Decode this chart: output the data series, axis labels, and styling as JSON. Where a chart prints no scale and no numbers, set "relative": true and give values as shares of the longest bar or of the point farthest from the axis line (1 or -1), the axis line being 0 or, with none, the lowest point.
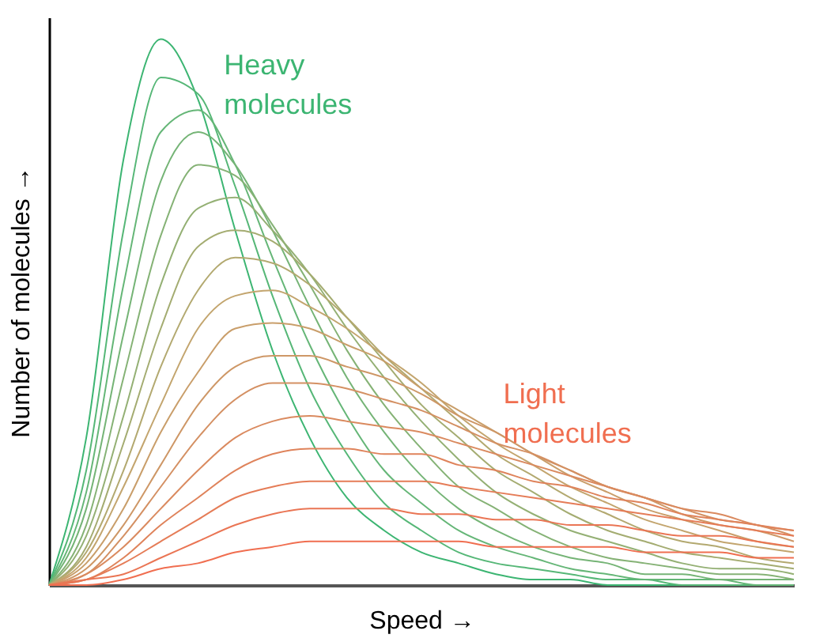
{
  "chart_data": {
    "type": "line",
    "relative": true,
    "xlabel": "Speed →",
    "ylabel": "Number of molecules →",
    "categories": [
      null,
      null,
      null,
      null,
      null,
      null,
      null,
      null,
      null,
      null,
      null,
      null,
      null,
      null,
      null,
      null,
      null,
      null,
      null,
      null,
      null
    ],
    "legend": false,
    "grid": false,
    "marker": "none",
    "line_style": "solid",
    "tick_labels": false,
    "series": [
      {
        "name": "Heavy molecules",
        "color": "#3cb572",
        "values": [
          0,
          0.27,
          0.78,
          1,
          0.89,
          0.65,
          0.43,
          0.27,
          0.16,
          0.1,
          0.06,
          0.04,
          0.02,
          0.01,
          0.01,
          0,
          0,
          0,
          0,
          0,
          0
        ]
      },
      {
        "color": "#56b777",
        "values": [
          0,
          0.21,
          0.65,
          0.93,
          0.9,
          0.73,
          0.53,
          0.36,
          0.24,
          0.15,
          0.1,
          0.06,
          0.04,
          0.03,
          0.02,
          0.01,
          0.01,
          0,
          0,
          0,
          0
        ]
      },
      {
        "color": "#65b677",
        "values": [
          0,
          0.17,
          0.55,
          0.83,
          0.87,
          0.77,
          0.6,
          0.44,
          0.31,
          0.21,
          0.15,
          0.1,
          0.07,
          0.05,
          0.03,
          0.02,
          0.01,
          0.01,
          0.01,
          0,
          0
        ]
      },
      {
        "color": "#75b476",
        "values": [
          0,
          0.14,
          0.46,
          0.74,
          0.83,
          0.77,
          0.65,
          0.51,
          0.38,
          0.28,
          0.2,
          0.14,
          0.1,
          0.07,
          0.05,
          0.04,
          0.02,
          0.02,
          0.01,
          0.01,
          0.01
        ]
      },
      {
        "color": "#85b275",
        "values": [
          0,
          0.11,
          0.38,
          0.64,
          0.77,
          0.75,
          0.66,
          0.55,
          0.43,
          0.33,
          0.25,
          0.18,
          0.14,
          0.1,
          0.07,
          0.05,
          0.04,
          0.03,
          0.02,
          0.02,
          0.01
        ]
      },
      {
        "color": "#94b074",
        "values": [
          0,
          0.09,
          0.31,
          0.55,
          0.69,
          0.71,
          0.65,
          0.57,
          0.47,
          0.38,
          0.3,
          0.23,
          0.17,
          0.13,
          0.1,
          0.08,
          0.06,
          0.04,
          0.03,
          0.03,
          0.02
        ]
      },
      {
        "color": "#a4ac71",
        "values": [
          0,
          0.07,
          0.26,
          0.47,
          0.62,
          0.65,
          0.63,
          0.57,
          0.49,
          0.41,
          0.33,
          0.27,
          0.21,
          0.17,
          0.13,
          0.1,
          0.08,
          0.06,
          0.05,
          0.04,
          0.03
        ]
      },
      {
        "color": "#b3a970",
        "values": [
          0,
          0.06,
          0.21,
          0.4,
          0.54,
          0.6,
          0.59,
          0.55,
          0.49,
          0.42,
          0.36,
          0.3,
          0.24,
          0.2,
          0.16,
          0.13,
          0.1,
          0.08,
          0.07,
          0.05,
          0.04
        ]
      },
      {
        "color": "#c3a56e",
        "values": [
          0,
          0.05,
          0.18,
          0.33,
          0.47,
          0.53,
          0.54,
          0.51,
          0.47,
          0.42,
          0.37,
          0.31,
          0.26,
          0.22,
          0.18,
          0.15,
          0.12,
          0.1,
          0.08,
          0.07,
          0.06
        ]
      },
      {
        "color": "#c99e6a",
        "values": [
          0,
          0.04,
          0.14,
          0.28,
          0.39,
          0.47,
          0.48,
          0.47,
          0.44,
          0.41,
          0.36,
          0.32,
          0.28,
          0.24,
          0.2,
          0.17,
          0.14,
          0.12,
          0.1,
          0.08,
          0.07
        ]
      },
      {
        "color": "#ce9766",
        "values": [
          0,
          0.03,
          0.11,
          0.22,
          0.33,
          0.4,
          0.42,
          0.42,
          0.4,
          0.38,
          0.35,
          0.31,
          0.28,
          0.24,
          0.21,
          0.18,
          0.16,
          0.13,
          0.11,
          0.1,
          0.08
        ]
      },
      {
        "color": "#d49063",
        "values": [
          0,
          0.02,
          0.09,
          0.18,
          0.27,
          0.34,
          0.37,
          0.37,
          0.36,
          0.34,
          0.32,
          0.29,
          0.26,
          0.24,
          0.21,
          0.18,
          0.16,
          0.14,
          0.12,
          0.11,
          0.09
        ]
      },
      {
        "color": "#da8a5f",
        "values": [
          0,
          0.02,
          0.07,
          0.14,
          0.21,
          0.27,
          0.3,
          0.31,
          0.3,
          0.29,
          0.28,
          0.26,
          0.24,
          0.22,
          0.2,
          0.18,
          0.16,
          0.14,
          0.13,
          0.11,
          0.1
        ]
      },
      {
        "color": "#df835b",
        "values": [
          0,
          0.01,
          0.05,
          0.11,
          0.16,
          0.21,
          0.24,
          0.25,
          0.25,
          0.24,
          0.24,
          0.22,
          0.21,
          0.19,
          0.18,
          0.16,
          0.15,
          0.13,
          0.12,
          0.11,
          0.1
        ]
      },
      {
        "color": "#e57c57",
        "values": [
          0,
          0.01,
          0.04,
          0.08,
          0.12,
          0.16,
          0.18,
          0.19,
          0.19,
          0.19,
          0.19,
          0.18,
          0.17,
          0.16,
          0.15,
          0.14,
          0.13,
          0.12,
          0.11,
          0.1,
          0.09
        ]
      },
      {
        "color": "#ea7554",
        "values": [
          0,
          0.01,
          0.02,
          0.05,
          0.08,
          0.11,
          0.13,
          0.14,
          0.14,
          0.14,
          0.13,
          0.13,
          0.12,
          0.12,
          0.11,
          0.11,
          0.1,
          0.09,
          0.09,
          0.08,
          0.07
        ]
      },
      {
        "name": "Light molecules",
        "color": "#f06e50",
        "values": [
          0,
          0,
          0.01,
          0.03,
          0.04,
          0.06,
          0.07,
          0.08,
          0.08,
          0.08,
          0.08,
          0.08,
          0.07,
          0.07,
          0.07,
          0.07,
          0.06,
          0.06,
          0.06,
          0.05,
          0.05
        ]
      }
    ]
  }
}
